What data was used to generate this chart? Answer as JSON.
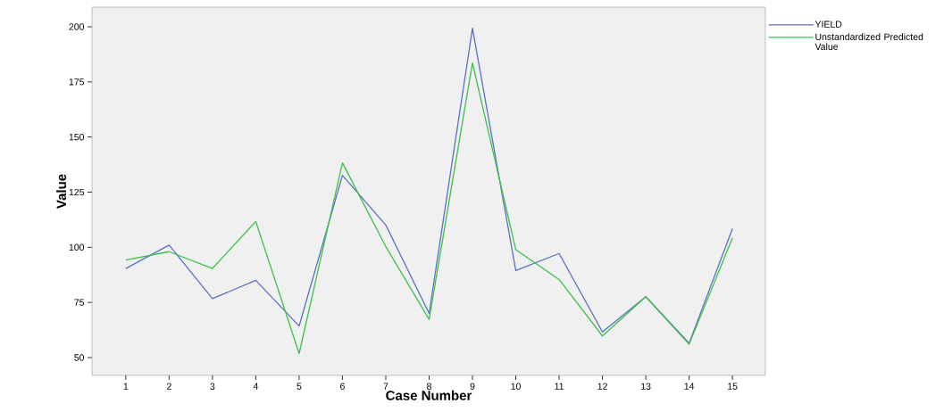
{
  "chart_data": {
    "type": "line",
    "xlabel": "Case Number",
    "ylabel": "Value",
    "categories": [
      "1",
      "2",
      "3",
      "4",
      "5",
      "6",
      "7",
      "8",
      "9",
      "10",
      "11",
      "12",
      "13",
      "14",
      "15"
    ],
    "series": [
      {
        "name": "YIELD",
        "color": "#5a6ec4",
        "values": [
          90.4,
          101,
          76.7,
          85,
          64.3,
          132.6,
          110.1,
          70,
          199.3,
          89.5,
          97.2,
          61.6,
          77.6,
          56.5,
          108.4
        ]
      },
      {
        "name": "Unstandardized Predicted Value",
        "color": "#3cc04a",
        "values": [
          94.2,
          98,
          90.4,
          111.7,
          51.8,
          138.3,
          100.3,
          67.3,
          183.6,
          98.9,
          85.4,
          59.8,
          77.6,
          56,
          104.3
        ]
      }
    ],
    "ylim": [
      41.9,
      208.9
    ],
    "yticks": [
      50,
      75,
      100,
      125,
      150,
      175,
      200
    ],
    "legend": "right",
    "marker": "none",
    "line_style": "solid"
  }
}
